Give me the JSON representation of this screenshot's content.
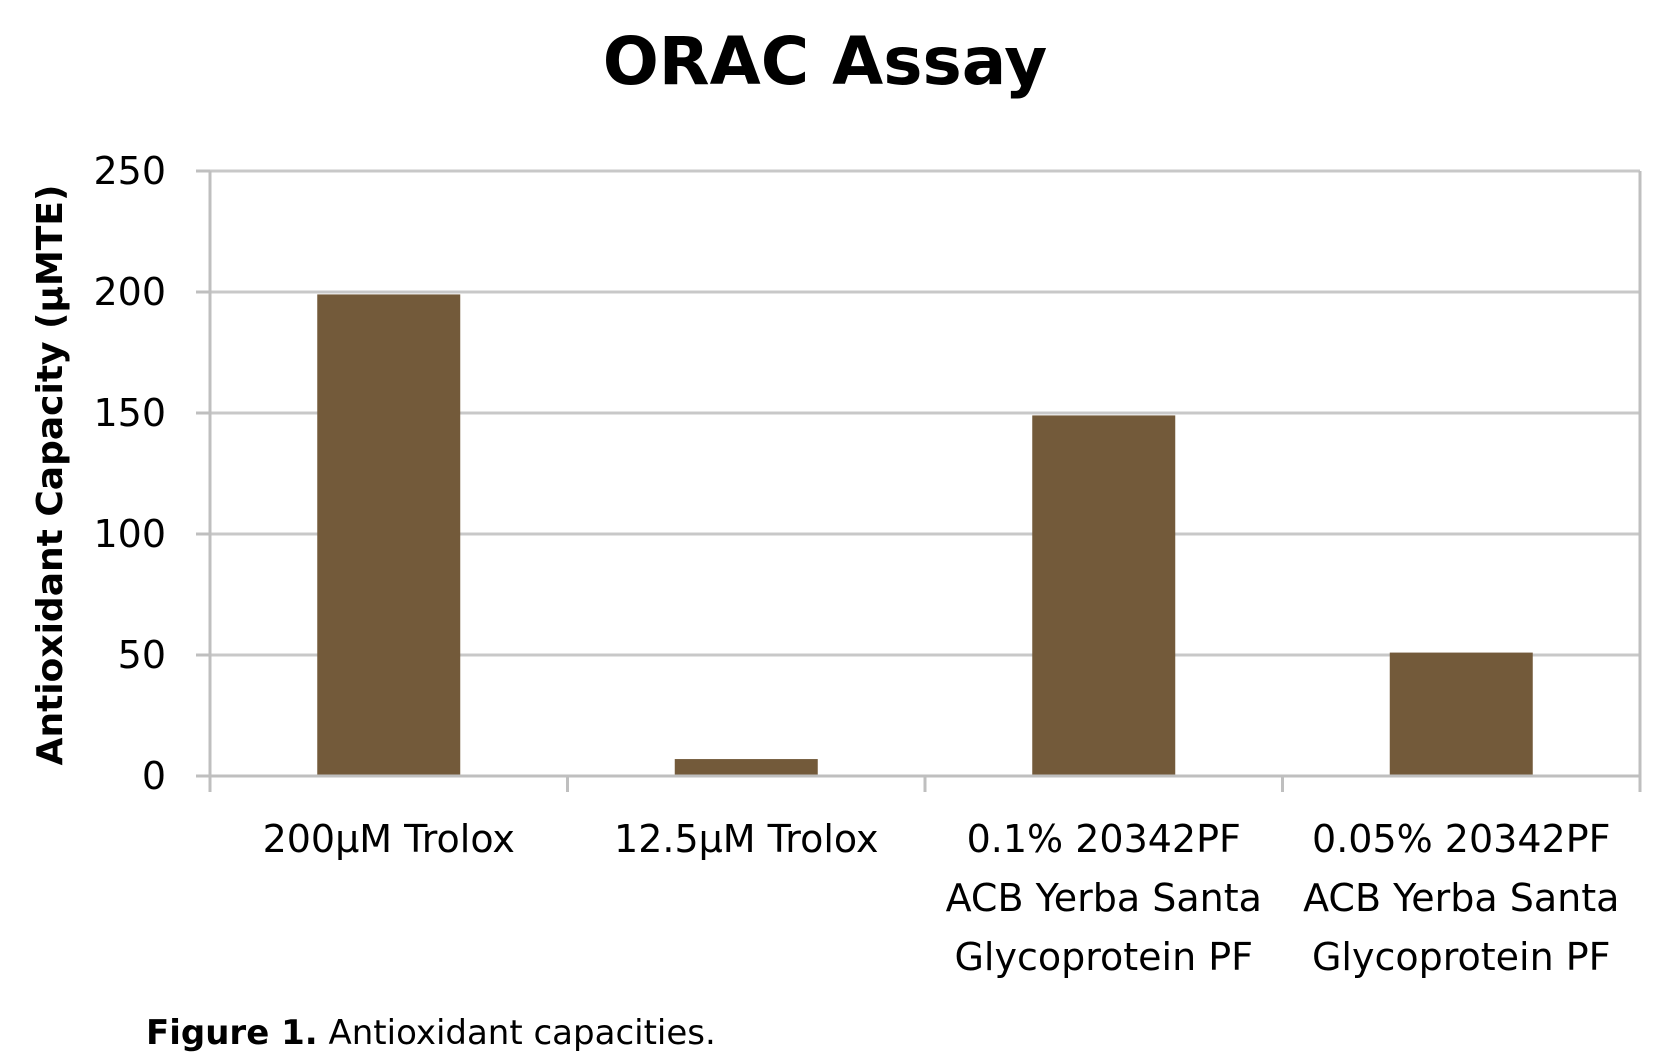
{
  "chart_data": {
    "type": "bar",
    "title": "ORAC Assay",
    "xlabel": "",
    "ylabel": "Antioxidant Capacity (µMTE)",
    "ylim": [
      0,
      250
    ],
    "yticks": [
      0,
      50,
      100,
      150,
      200,
      250
    ],
    "grid": true,
    "legend": "none",
    "categories": [
      [
        "200µM Trolox"
      ],
      [
        "12.5µM Trolox"
      ],
      [
        "0.1% 20342PF",
        "ACB Yerba Santa",
        "Glycoprotein PF"
      ],
      [
        "0.05% 20342PF",
        "ACB Yerba Santa",
        "Glycoprotein PF"
      ]
    ],
    "values": [
      199,
      7,
      149,
      51
    ],
    "colors": {
      "bar": "#735a3a",
      "grid": "#c8c8c8",
      "axis": "#bfbfbf"
    }
  },
  "caption": {
    "label": "Figure 1.",
    "text": " Antioxidant capacities."
  }
}
